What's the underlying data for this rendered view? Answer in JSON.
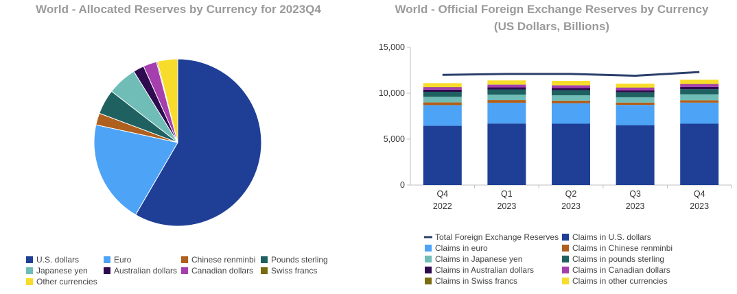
{
  "charts": {
    "pie": {
      "title": "World - Allocated Reserves by Currency for 2023Q4"
    },
    "bar": {
      "title_line1": "World - Official Foreign Exchange Reserves by Currency",
      "title_line2": "(US Dollars, Billions)"
    }
  },
  "chart_data": [
    {
      "type": "pie",
      "title": "World - Allocated Reserves by Currency for 2023Q4",
      "slices": [
        {
          "label": "U.S. dollars",
          "value": 58.4,
          "color": "#1f3f97"
        },
        {
          "label": "Euro",
          "value": 20.0,
          "color": "#4da3f5"
        },
        {
          "label": "Chinese renminbi",
          "value": 2.3,
          "color": "#b0601e"
        },
        {
          "label": "Pounds sterling",
          "value": 4.8,
          "color": "#1e6160"
        },
        {
          "label": "Japanese yen",
          "value": 5.7,
          "color": "#6fbdb6"
        },
        {
          "label": "Australian dollars",
          "value": 2.1,
          "color": "#2e0a4e"
        },
        {
          "label": "Canadian dollars",
          "value": 2.6,
          "color": "#a63fae"
        },
        {
          "label": "Swiss francs",
          "value": 0.2,
          "color": "#7a6a10"
        },
        {
          "label": "Other currencies",
          "value": 3.9,
          "color": "#f7dc2b"
        }
      ],
      "legend": [
        {
          "label": "U.S. dollars",
          "color": "#1f3f97"
        },
        {
          "label": "Euro",
          "color": "#4da3f5"
        },
        {
          "label": "Chinese renminbi",
          "color": "#b0601e"
        },
        {
          "label": "Pounds sterling",
          "color": "#1e6160"
        },
        {
          "label": "Japanese yen",
          "color": "#6fbdb6"
        },
        {
          "label": "Australian dollars",
          "color": "#2e0a4e"
        },
        {
          "label": "Canadian dollars",
          "color": "#a63fae"
        },
        {
          "label": "Swiss francs",
          "color": "#7a6a10"
        },
        {
          "label": "Other currencies",
          "color": "#f7dc2b"
        }
      ],
      "legend_placement": "bottom"
    },
    {
      "type": "bar",
      "stacked": true,
      "title": "World - Official Foreign Exchange Reserves by Currency",
      "subtitle": "(US Dollars, Billions)",
      "categories": [
        [
          "Q4",
          "2022"
        ],
        [
          "Q1",
          "2023"
        ],
        [
          "Q2",
          "2023"
        ],
        [
          "Q3",
          "2023"
        ],
        [
          "Q4",
          "2023"
        ]
      ],
      "ylim": [
        0,
        15000
      ],
      "yticks": [
        0,
        5000,
        10000,
        15000
      ],
      "ytick_labels": [
        "0",
        "5,000",
        "10,000",
        "15,000"
      ],
      "grid": false,
      "legend_placement": "bottom",
      "series": [
        {
          "name": "Claims in U.S. dollars",
          "color": "#1f3f97",
          "values": [
            6450,
            6700,
            6680,
            6520,
            6680
          ]
        },
        {
          "name": "Claims in euro",
          "color": "#4da3f5",
          "values": [
            2250,
            2260,
            2230,
            2200,
            2290
          ]
        },
        {
          "name": "Claims in Chinese renminbi",
          "color": "#b0601e",
          "values": [
            300,
            290,
            280,
            260,
            260
          ]
        },
        {
          "name": "Claims in Japanese yen",
          "color": "#6fbdb6",
          "values": [
            610,
            600,
            580,
            580,
            650
          ]
        },
        {
          "name": "Claims in pounds sterling",
          "color": "#1e6160",
          "values": [
            540,
            560,
            560,
            540,
            560
          ]
        },
        {
          "name": "Claims in Australian dollars",
          "color": "#2e0a4e",
          "values": [
            230,
            230,
            230,
            220,
            240
          ]
        },
        {
          "name": "Claims in Canadian dollars",
          "color": "#a63fae",
          "values": [
            270,
            280,
            290,
            280,
            300
          ]
        },
        {
          "name": "Claims in Swiss francs",
          "color": "#7a6a10",
          "values": [
            25,
            25,
            25,
            25,
            25
          ]
        },
        {
          "name": "Claims in other currencies",
          "color": "#f7dc2b",
          "values": [
            420,
            450,
            470,
            420,
            460
          ]
        }
      ],
      "line_series": {
        "name": "Total Foreign Exchange Reserves",
        "color": "#2b3f6b",
        "values": [
          12000,
          12100,
          12100,
          11900,
          12300
        ]
      },
      "legend": [
        {
          "label": "Total Foreign Exchange Reserves",
          "color": "#2b3f6b",
          "kind": "line"
        },
        {
          "label": "Claims in U.S. dollars",
          "color": "#1f3f97",
          "kind": "box"
        },
        {
          "label": "Claims in euro",
          "color": "#4da3f5",
          "kind": "box"
        },
        {
          "label": "Claims in Chinese renminbi",
          "color": "#b0601e",
          "kind": "box"
        },
        {
          "label": "Claims in Japanese yen",
          "color": "#6fbdb6",
          "kind": "box"
        },
        {
          "label": "Claims in pounds sterling",
          "color": "#1e6160",
          "kind": "box"
        },
        {
          "label": "Claims in Australian dollars",
          "color": "#2e0a4e",
          "kind": "box"
        },
        {
          "label": "Claims in Canadian dollars",
          "color": "#a63fae",
          "kind": "box"
        },
        {
          "label": "Claims in Swiss francs",
          "color": "#7a6a10",
          "kind": "box"
        },
        {
          "label": "Claims in other currencies",
          "color": "#f7dc2b",
          "kind": "box"
        }
      ]
    }
  ]
}
